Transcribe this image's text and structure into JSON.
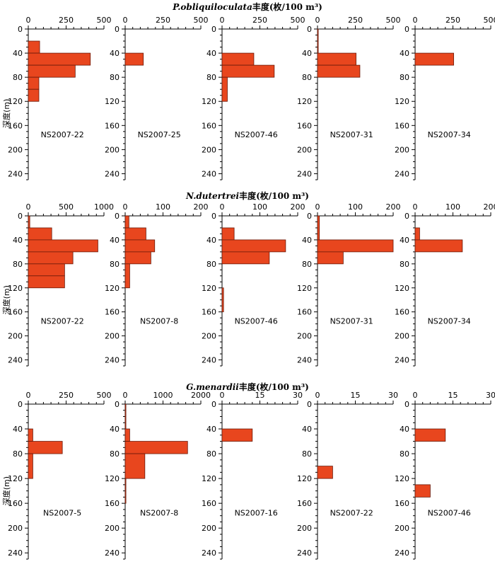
{
  "chart_data": {
    "type": "bar",
    "orientation": "horizontal",
    "ylabel": "深度(m)",
    "ylim": [
      0,
      250
    ],
    "yticks": [
      0,
      40,
      80,
      120,
      160,
      200,
      240
    ],
    "bar_color": "#e8461e",
    "bar_edge_color": "#6b1a0a",
    "rows": [
      {
        "title_species": "P.obliquiloculata",
        "title_unit": "丰度(枚/100 m³)",
        "panels": [
          {
            "label": "NS2007-22",
            "xlim": [
              0,
              500
            ],
            "xticks": [
              0,
              250,
              500
            ],
            "bars": [
              {
                "depth": [
                  20,
                  40
                ],
                "value": 75
              },
              {
                "depth": [
                  40,
                  60
                ],
                "value": 410
              },
              {
                "depth": [
                  60,
                  80
                ],
                "value": 310
              },
              {
                "depth": [
                  80,
                  100
                ],
                "value": 70
              },
              {
                "depth": [
                  100,
                  120
                ],
                "value": 70
              }
            ]
          },
          {
            "label": "NS2007-25",
            "xlim": [
              0,
              500
            ],
            "xticks": [
              0,
              250,
              500
            ],
            "bars": [
              {
                "depth": [
                  40,
                  60
                ],
                "value": 120
              }
            ]
          },
          {
            "label": "NS2007-46",
            "xlim": [
              0,
              500
            ],
            "xticks": [
              0,
              250,
              500
            ],
            "bars": [
              {
                "depth": [
                  40,
                  60
                ],
                "value": 210
              },
              {
                "depth": [
                  60,
                  80
                ],
                "value": 345
              },
              {
                "depth": [
                  80,
                  120
                ],
                "value": 35
              }
            ]
          },
          {
            "label": "NS2007-31",
            "xlim": [
              0,
              500
            ],
            "xticks": [
              0,
              250,
              500
            ],
            "bars": [
              {
                "depth": [
                  0,
                  40
                ],
                "value": 5
              },
              {
                "depth": [
                  40,
                  60
                ],
                "value": 255
              },
              {
                "depth": [
                  60,
                  80
                ],
                "value": 280
              }
            ]
          },
          {
            "label": "NS2007-34",
            "xlim": [
              0,
              500
            ],
            "xticks": [
              0,
              250,
              500
            ],
            "bars": [
              {
                "depth": [
                  40,
                  60
                ],
                "value": 255
              }
            ]
          }
        ]
      },
      {
        "title_species": "N.dutertrei",
        "title_unit": "丰度(枚/100 m³)",
        "panels": [
          {
            "label": "NS2007-22",
            "xlim": [
              0,
              1000
            ],
            "xticks": [
              0,
              500,
              1000
            ],
            "bars": [
              {
                "depth": [
                  0,
                  20
                ],
                "value": 20
              },
              {
                "depth": [
                  20,
                  40
                ],
                "value": 310
              },
              {
                "depth": [
                  40,
                  60
                ],
                "value": 920
              },
              {
                "depth": [
                  60,
                  80
                ],
                "value": 590
              },
              {
                "depth": [
                  80,
                  100
                ],
                "value": 480
              },
              {
                "depth": [
                  100,
                  120
                ],
                "value": 480
              }
            ]
          },
          {
            "label": "NS2007-8",
            "xlim": [
              0,
              200
            ],
            "xticks": [
              0,
              100,
              200
            ],
            "bars": [
              {
                "depth": [
                  0,
                  20
                ],
                "value": 10
              },
              {
                "depth": [
                  20,
                  40
                ],
                "value": 55
              },
              {
                "depth": [
                  40,
                  60
                ],
                "value": 78
              },
              {
                "depth": [
                  60,
                  80
                ],
                "value": 68
              },
              {
                "depth": [
                  80,
                  120
                ],
                "value": 12
              }
            ]
          },
          {
            "label": "NS2007-46",
            "xlim": [
              0,
              200
            ],
            "xticks": [
              0,
              100,
              200
            ],
            "bars": [
              {
                "depth": [
                  20,
                  40
                ],
                "value": 32
              },
              {
                "depth": [
                  40,
                  60
                ],
                "value": 168
              },
              {
                "depth": [
                  60,
                  80
                ],
                "value": 125
              },
              {
                "depth": [
                  120,
                  160
                ],
                "value": 4
              }
            ]
          },
          {
            "label": "NS2007-31",
            "xlim": [
              0,
              200
            ],
            "xticks": [
              0,
              100,
              200
            ],
            "bars": [
              {
                "depth": [
                  0,
                  40
                ],
                "value": 5
              },
              {
                "depth": [
                  40,
                  60
                ],
                "value": 200
              },
              {
                "depth": [
                  60,
                  80
                ],
                "value": 68
              }
            ]
          },
          {
            "label": "NS2007-34",
            "xlim": [
              0,
              200
            ],
            "xticks": [
              0,
              100,
              200
            ],
            "bars": [
              {
                "depth": [
                  20,
                  40
                ],
                "value": 12
              },
              {
                "depth": [
                  40,
                  60
                ],
                "value": 125
              }
            ]
          }
        ]
      },
      {
        "title_species": "G.menardii",
        "title_unit": "丰度(枚/100 m³)",
        "panels": [
          {
            "label": "NS2007-5",
            "xlim": [
              0,
              500
            ],
            "xticks": [
              0,
              250,
              500
            ],
            "bars": [
              {
                "depth": [
                  40,
                  60
                ],
                "value": 30
              },
              {
                "depth": [
                  60,
                  80
                ],
                "value": 225
              },
              {
                "depth": [
                  80,
                  120
                ],
                "value": 30
              }
            ]
          },
          {
            "label": "NS2007-8",
            "xlim": [
              0,
              2000
            ],
            "xticks": [
              0,
              1000,
              2000
            ],
            "bars": [
              {
                "depth": [
                  0,
                  40
                ],
                "value": 20
              },
              {
                "depth": [
                  40,
                  60
                ],
                "value": 120
              },
              {
                "depth": [
                  60,
                  80
                ],
                "value": 1650
              },
              {
                "depth": [
                  80,
                  120
                ],
                "value": 520
              },
              {
                "depth": [
                  120,
                  160
                ],
                "value": 20
              }
            ]
          },
          {
            "label": "NS2007-16",
            "xlim": [
              0,
              30
            ],
            "xticks": [
              0,
              15,
              30
            ],
            "bars": [
              {
                "depth": [
                  40,
                  60
                ],
                "value": 12
              }
            ]
          },
          {
            "label": "NS2007-22",
            "xlim": [
              0,
              30
            ],
            "xticks": [
              0,
              15,
              30
            ],
            "bars": [
              {
                "depth": [
                  100,
                  120
                ],
                "value": 6
              }
            ]
          },
          {
            "label": "NS2007-46",
            "xlim": [
              0,
              30
            ],
            "xticks": [
              0,
              15,
              30
            ],
            "bars": [
              {
                "depth": [
                  40,
                  60
                ],
                "value": 12
              },
              {
                "depth": [
                  130,
                  150
                ],
                "value": 6
              }
            ]
          }
        ]
      }
    ]
  }
}
